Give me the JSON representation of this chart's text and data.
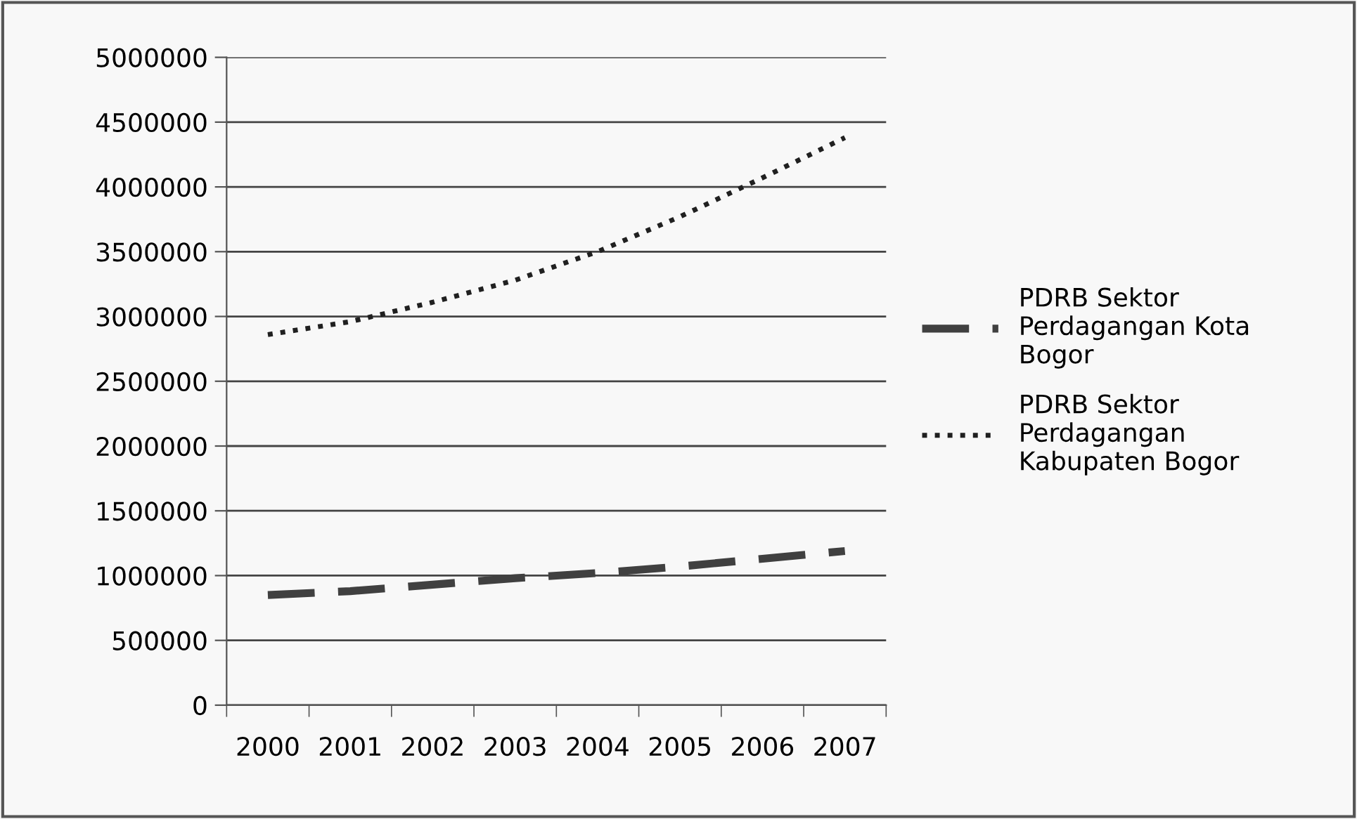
{
  "chart_data": {
    "type": "line",
    "categories": [
      "2000",
      "2001",
      "2002",
      "2003",
      "2004",
      "2005",
      "2006",
      "2007"
    ],
    "series": [
      {
        "name": "PDRB Sektor Perdagangan Kota Bogor",
        "color": "#404040",
        "line_style": "dashed",
        "values": [
          850000,
          880000,
          930000,
          980000,
          1020000,
          1070000,
          1130000,
          1190000
        ]
      },
      {
        "name": "PDRB Sektor Perdagangan Kabupaten Bogor",
        "color": "#202020",
        "line_style": "dotted",
        "values": [
          2860000,
          2960000,
          3110000,
          3280000,
          3500000,
          3770000,
          4070000,
          4380000
        ]
      }
    ],
    "ylim": [
      0,
      5000000
    ],
    "yticks": [
      0,
      500000,
      1000000,
      1500000,
      2000000,
      2500000,
      3000000,
      3500000,
      4000000,
      4500000,
      5000000
    ],
    "grid": "y",
    "legend": "right",
    "marker": "none"
  }
}
